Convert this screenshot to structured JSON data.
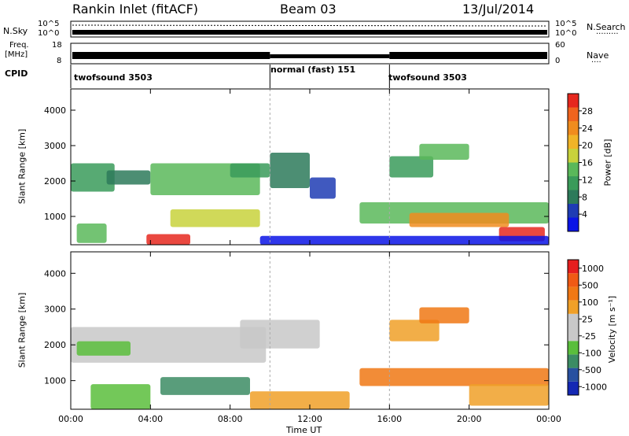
{
  "header": {
    "title": "Rankin Inlet (fitACF)",
    "beam": "Beam 03",
    "date": "13/Jul/2014"
  },
  "sky_panel": {
    "left_label": "N.Sky",
    "right_label": "N.Search",
    "left_ticks": [
      "10^5",
      "10^0"
    ],
    "right_ticks": [
      "10^5",
      "10^0"
    ],
    "dotted_label": "·········"
  },
  "freq_panel": {
    "label_line1": "Freq.",
    "label_line2": "[MHz]",
    "left_ticks": [
      "18",
      "8"
    ],
    "right_ticks": [
      "60",
      "0"
    ],
    "right_label": "Nave",
    "dotted_label": "····"
  },
  "cpid_panel": {
    "label": "CPID",
    "segments": [
      {
        "text": "twofsound 3503",
        "start": 0,
        "end": 10
      },
      {
        "text": "normal (fast) 151",
        "start": 10,
        "end": 16
      },
      {
        "text": "twofsound 3503",
        "start": 16,
        "end": 24
      }
    ]
  },
  "colors": {
    "power_scale": [
      "#0a14e6",
      "#1e3cb4",
      "#2d7a5a",
      "#3a9b5a",
      "#5ab85a",
      "#c8d23c",
      "#f0b428",
      "#f08c1e",
      "#f0641e",
      "#e6281e"
    ],
    "velocity_scale": [
      "#1428b4",
      "#2850a0",
      "#3c8c64",
      "#5abe3c",
      "#c8c8c8",
      "#c8c8c8",
      "#f0a028",
      "#f07814",
      "#f05a14",
      "#e61e1e"
    ]
  },
  "chart_data": [
    {
      "type": "heatmap",
      "name": "power",
      "xlabel": "",
      "ylabel": "Slant Range [km]",
      "xlim": [
        0,
        24
      ],
      "ylim": [
        200,
        4600
      ],
      "yticks": [
        "1000",
        "2000",
        "3000",
        "4000"
      ],
      "colorbar_label": "Power [dB]",
      "colorbar_ticks": [
        "4",
        "8",
        "12",
        "16",
        "20",
        "24",
        "28"
      ],
      "regions": [
        {
          "x0": 0.0,
          "x1": 2.2,
          "y0": 1700,
          "y1": 2500,
          "level": 3
        },
        {
          "x0": 1.8,
          "x1": 4.0,
          "y0": 1900,
          "y1": 2300,
          "level": 2
        },
        {
          "x0": 0.3,
          "x1": 1.8,
          "y0": 250,
          "y1": 800,
          "level": 4
        },
        {
          "x0": 3.8,
          "x1": 6.0,
          "y0": 200,
          "y1": 500,
          "level": 9
        },
        {
          "x0": 4.0,
          "x1": 9.5,
          "y0": 1600,
          "y1": 2500,
          "level": 4
        },
        {
          "x0": 5.0,
          "x1": 9.5,
          "y0": 700,
          "y1": 1200,
          "level": 5
        },
        {
          "x0": 8.0,
          "x1": 10.0,
          "y0": 2100,
          "y1": 2500,
          "level": 3
        },
        {
          "x0": 10.0,
          "x1": 12.0,
          "y0": 1800,
          "y1": 2800,
          "level": 2
        },
        {
          "x0": 12.0,
          "x1": 13.3,
          "y0": 1500,
          "y1": 2100,
          "level": 1
        },
        {
          "x0": 14.5,
          "x1": 24.0,
          "y0": 800,
          "y1": 1400,
          "level": 4
        },
        {
          "x0": 17.0,
          "x1": 22.0,
          "y0": 700,
          "y1": 1100,
          "level": 7
        },
        {
          "x0": 21.5,
          "x1": 23.8,
          "y0": 300,
          "y1": 700,
          "level": 9
        },
        {
          "x0": 16.0,
          "x1": 18.2,
          "y0": 2100,
          "y1": 2700,
          "level": 3
        },
        {
          "x0": 17.5,
          "x1": 20.0,
          "y0": 2600,
          "y1": 3050,
          "level": 4
        },
        {
          "x0": 9.5,
          "x1": 24.0,
          "y0": 200,
          "y1": 450,
          "level": 0
        }
      ]
    },
    {
      "type": "heatmap",
      "name": "velocity",
      "xlabel": "Time UT",
      "ylabel": "Slant Range [km]",
      "xlim": [
        0,
        24
      ],
      "ylim": [
        200,
        4600
      ],
      "xticks": [
        "00:00",
        "04:00",
        "08:00",
        "12:00",
        "16:00",
        "20:00",
        "00:00"
      ],
      "yticks": [
        "1000",
        "2000",
        "3000",
        "4000"
      ],
      "colorbar_label": "Velocity [m s⁻¹]",
      "colorbar_ticks": [
        "1000",
        "500",
        "100",
        "25",
        "-25",
        "-100",
        "-500",
        "-1000"
      ],
      "regions": [
        {
          "x0": 0.0,
          "x1": 9.8,
          "y0": 1500,
          "y1": 2500,
          "level": 4
        },
        {
          "x0": 0.3,
          "x1": 3.0,
          "y0": 1700,
          "y1": 2100,
          "level": 3
        },
        {
          "x0": 4.5,
          "x1": 9.0,
          "y0": 600,
          "y1": 1100,
          "level": 2
        },
        {
          "x0": 1.0,
          "x1": 4.0,
          "y0": 200,
          "y1": 900,
          "level": 3
        },
        {
          "x0": 8.5,
          "x1": 12.5,
          "y0": 1900,
          "y1": 2700,
          "level": 4
        },
        {
          "x0": 9.0,
          "x1": 14.0,
          "y0": 200,
          "y1": 700,
          "level": 6
        },
        {
          "x0": 14.5,
          "x1": 24.0,
          "y0": 850,
          "y1": 1350,
          "level": 7
        },
        {
          "x0": 20.0,
          "x1": 24.0,
          "y0": 300,
          "y1": 900,
          "level": 6
        },
        {
          "x0": 16.0,
          "x1": 18.5,
          "y0": 2100,
          "y1": 2700,
          "level": 6
        },
        {
          "x0": 17.5,
          "x1": 20.0,
          "y0": 2600,
          "y1": 3050,
          "level": 7
        }
      ]
    }
  ]
}
